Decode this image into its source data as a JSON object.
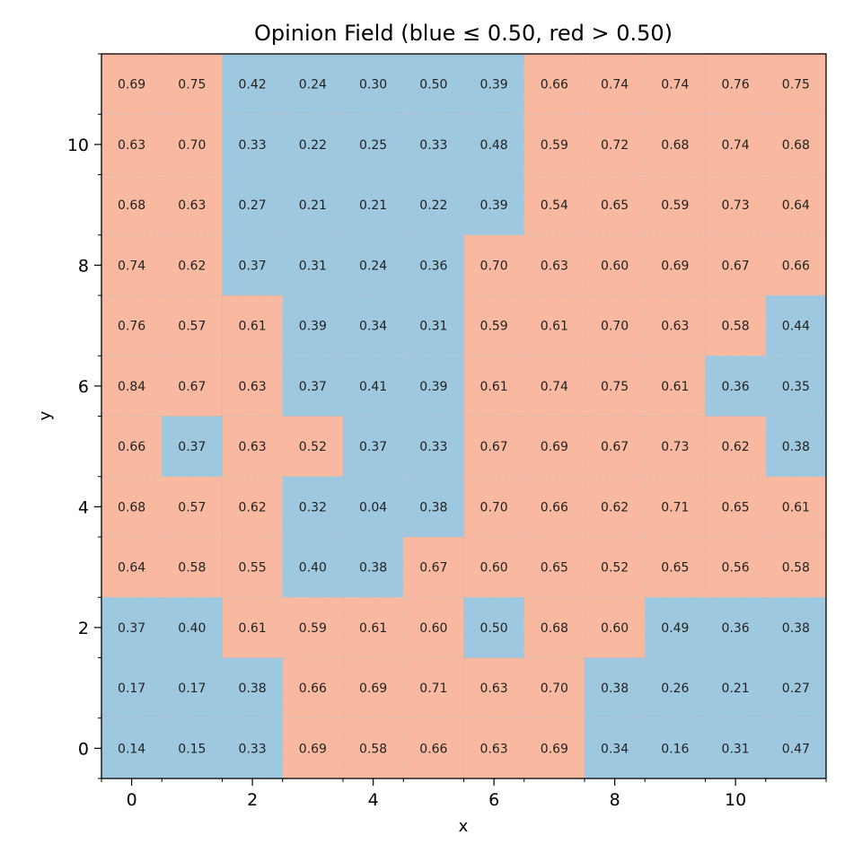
{
  "chart_data": {
    "type": "heatmap",
    "title": "Opinion Field (blue ≤ 0.50, red > 0.50)",
    "xlabel": "x",
    "ylabel": "y",
    "threshold": 0.5,
    "colors": {
      "low": "#9ec8df",
      "high": "#f9b9a0",
      "grid": "#b8b8b8",
      "text": "#222222"
    },
    "x_ticks": [
      "0",
      "2",
      "4",
      "6",
      "8",
      "10"
    ],
    "y_ticks": [
      "0",
      "2",
      "4",
      "6",
      "8",
      "10"
    ],
    "xlim": [
      -0.5,
      11.5
    ],
    "ylim": [
      -0.5,
      11.5
    ],
    "rows_top_to_bottom": [
      {
        "y": 11,
        "values": [
          0.69,
          0.75,
          0.42,
          0.24,
          0.3,
          0.5,
          0.39,
          0.66,
          0.74,
          0.74,
          0.76,
          0.75
        ]
      },
      {
        "y": 10,
        "values": [
          0.63,
          0.7,
          0.33,
          0.22,
          0.25,
          0.33,
          0.48,
          0.59,
          0.72,
          0.68,
          0.74,
          0.68
        ]
      },
      {
        "y": 9,
        "values": [
          0.68,
          0.63,
          0.27,
          0.21,
          0.21,
          0.22,
          0.39,
          0.54,
          0.65,
          0.59,
          0.73,
          0.64
        ]
      },
      {
        "y": 8,
        "values": [
          0.74,
          0.62,
          0.37,
          0.31,
          0.24,
          0.36,
          0.7,
          0.63,
          0.6,
          0.69,
          0.67,
          0.66
        ]
      },
      {
        "y": 7,
        "values": [
          0.76,
          0.57,
          0.61,
          0.39,
          0.34,
          0.31,
          0.59,
          0.61,
          0.7,
          0.63,
          0.58,
          0.44
        ]
      },
      {
        "y": 6,
        "values": [
          0.84,
          0.67,
          0.63,
          0.37,
          0.41,
          0.39,
          0.61,
          0.74,
          0.75,
          0.61,
          0.36,
          0.35
        ]
      },
      {
        "y": 5,
        "values": [
          0.66,
          0.37,
          0.63,
          0.52,
          0.37,
          0.33,
          0.67,
          0.69,
          0.67,
          0.73,
          0.62,
          0.38
        ]
      },
      {
        "y": 4,
        "values": [
          0.68,
          0.57,
          0.62,
          0.32,
          0.04,
          0.38,
          0.7,
          0.66,
          0.62,
          0.71,
          0.65,
          0.61
        ]
      },
      {
        "y": 3,
        "values": [
          0.64,
          0.58,
          0.55,
          0.4,
          0.38,
          0.67,
          0.6,
          0.65,
          0.52,
          0.65,
          0.56,
          0.58
        ]
      },
      {
        "y": 2,
        "values": [
          0.37,
          0.4,
          0.61,
          0.59,
          0.61,
          0.6,
          0.5,
          0.68,
          0.6,
          0.49,
          0.36,
          0.38
        ]
      },
      {
        "y": 1,
        "values": [
          0.17,
          0.17,
          0.38,
          0.66,
          0.69,
          0.71,
          0.63,
          0.7,
          0.38,
          0.26,
          0.21,
          0.27
        ]
      },
      {
        "y": 0,
        "values": [
          0.14,
          0.15,
          0.33,
          0.69,
          0.58,
          0.66,
          0.63,
          0.69,
          0.34,
          0.16,
          0.31,
          0.47
        ]
      }
    ]
  }
}
